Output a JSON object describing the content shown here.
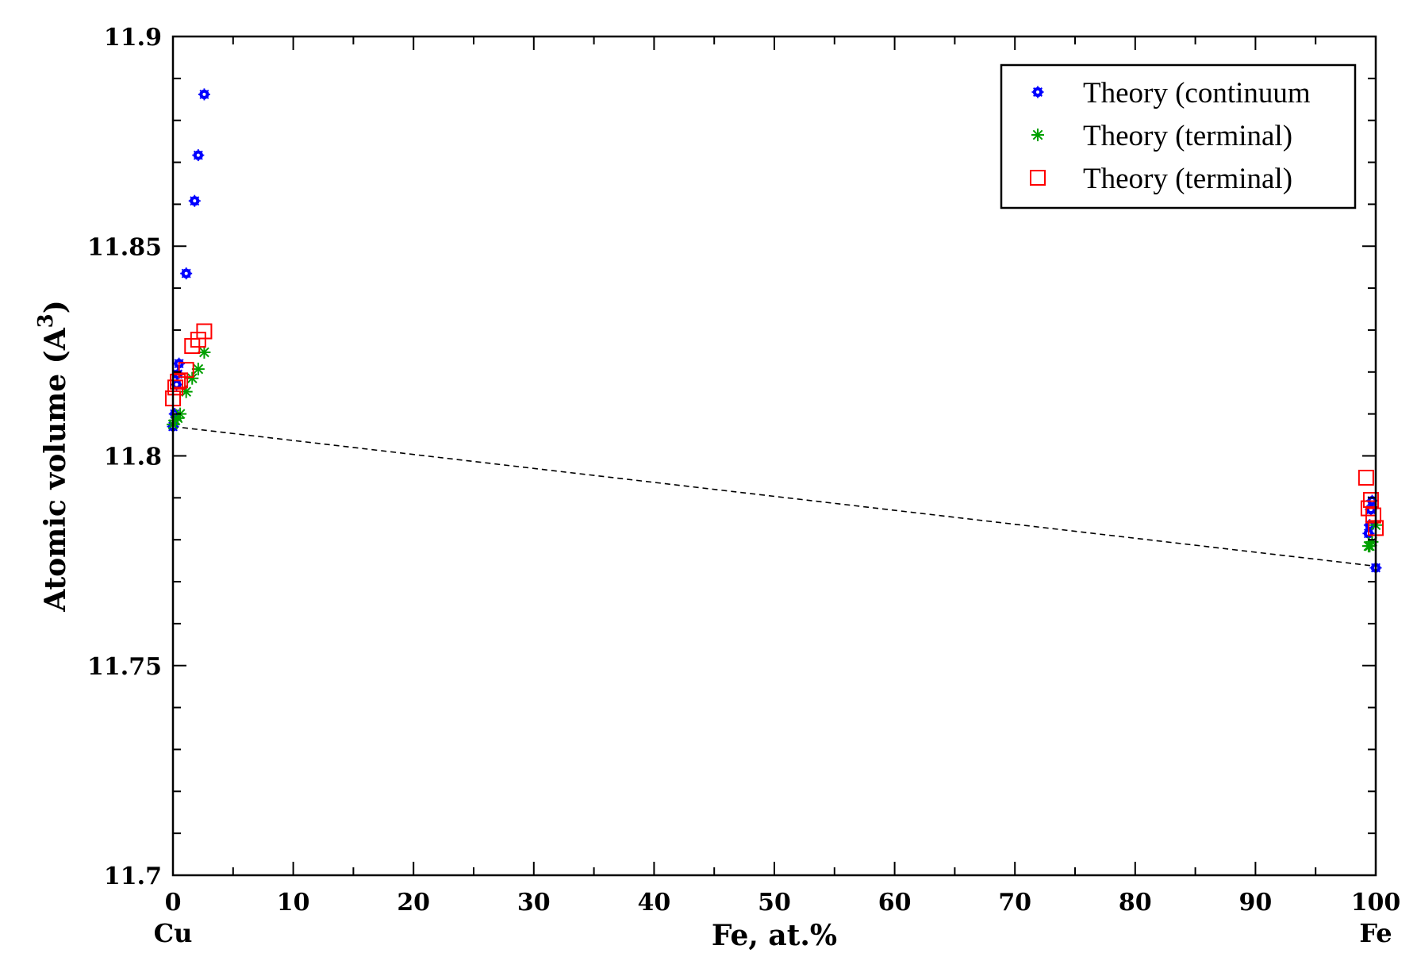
{
  "chart_data": {
    "type": "scatter",
    "title": "",
    "xlabel": "Fe, at.%",
    "ylabel": "Atomic volume (A",
    "ylabel_superscript": "3",
    "ylabel_close": ")",
    "xlim": [
      0,
      100
    ],
    "ylim": [
      11.7,
      11.9
    ],
    "xticks": [
      0,
      10,
      20,
      30,
      40,
      50,
      60,
      70,
      80,
      90,
      100
    ],
    "xtick_labels": [
      "0",
      "10",
      "20",
      "30",
      "40",
      "50",
      "60",
      "70",
      "80",
      "90",
      "100"
    ],
    "yticks": [
      11.7,
      11.75,
      11.8,
      11.85,
      11.9
    ],
    "ytick_labels": [
      "11.7",
      "11.75",
      "11.8",
      "11.85",
      "11.9"
    ],
    "end_labels": {
      "left": "Cu",
      "right": "Fe"
    },
    "grid": false,
    "legend_position": "top-right",
    "series": [
      {
        "name": "Theory (continuum",
        "marker": "circle-star",
        "color": "#0000ff",
        "x": [
          0,
          0.15,
          0.3,
          0.4,
          0.5,
          1.1,
          1.8,
          2.1,
          2.6,
          99.4,
          99.5,
          99.6,
          99.7,
          100
        ],
        "y": [
          11.807,
          11.81,
          11.817,
          11.8195,
          11.822,
          11.8435,
          11.8608,
          11.8717,
          11.8862,
          11.7815,
          11.7835,
          11.7872,
          11.7893,
          11.7733
        ]
      },
      {
        "name": "Theory (terminal)",
        "marker": "asterisk",
        "color": "#00a000",
        "x": [
          0,
          0.2,
          0.4,
          0.6,
          1.1,
          1.6,
          2.1,
          2.6,
          99.4,
          99.5,
          99.7,
          100
        ],
        "y": [
          11.8075,
          11.8085,
          11.809,
          11.81,
          11.8153,
          11.8185,
          11.8207,
          11.8247,
          11.7785,
          11.7785,
          11.7795,
          11.7835
        ]
      },
      {
        "name": "Theory (terminal)",
        "marker": "square",
        "color": "#ff0000",
        "x": [
          0,
          0.2,
          0.4,
          0.6,
          1.1,
          1.6,
          2.1,
          2.6,
          99.2,
          99.4,
          99.6,
          99.8,
          100
        ],
        "y": [
          11.8137,
          11.8163,
          11.8177,
          11.818,
          11.8205,
          11.8262,
          11.8277,
          11.8297,
          11.7948,
          11.7875,
          11.7895,
          11.7858,
          11.7828
        ]
      },
      {
        "name": "",
        "marker": "dashed-line",
        "color": "#000000",
        "x": [
          0,
          100
        ],
        "y": [
          11.807,
          11.7737
        ]
      }
    ]
  }
}
